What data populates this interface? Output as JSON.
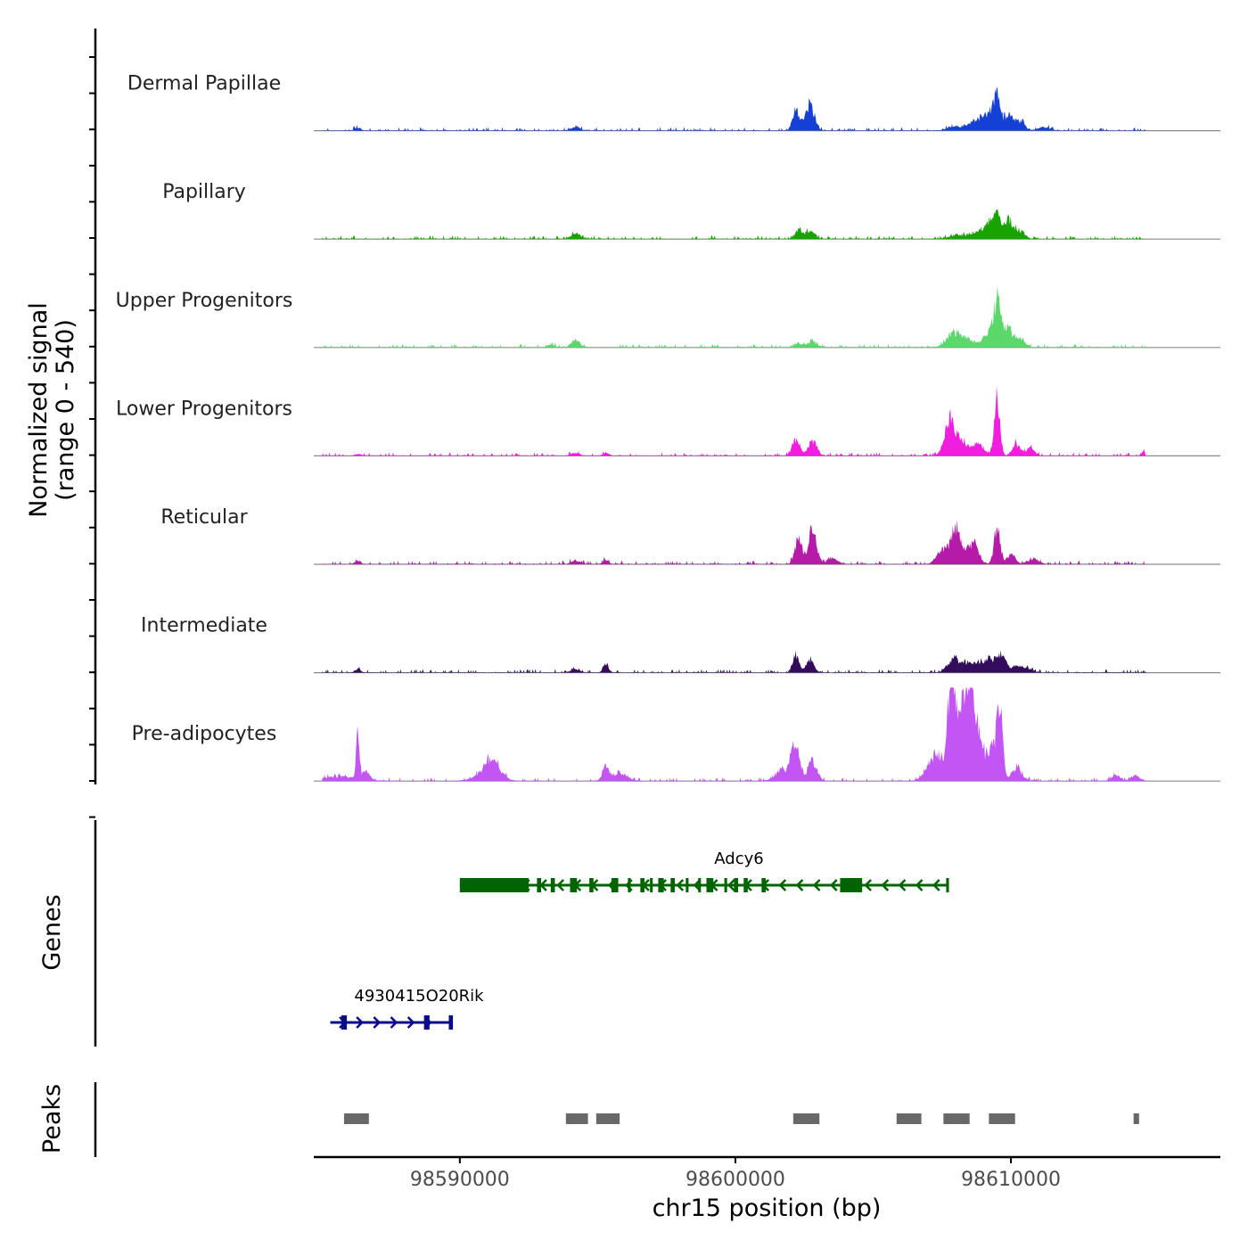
{
  "chart_data": {
    "type": "area",
    "title": "",
    "ylabel_line1": "Normalized signal",
    "ylabel_line2": "(range 0 - 540)",
    "xlabel": "chr15 position (bp)",
    "xlim": [
      98584700,
      98617600
    ],
    "ylim": [
      0,
      540
    ],
    "x_ticks": [
      98590000,
      98600000,
      98610000
    ],
    "x_tick_labels": [
      "98590000",
      "98600000",
      "98610000"
    ],
    "series": [
      {
        "name": "Dermal Papillae",
        "color": "#1440d6",
        "peaks": [
          [
            98586300,
            20,
            100
          ],
          [
            98594200,
            25,
            150
          ],
          [
            98602200,
            160,
            120
          ],
          [
            98602700,
            190,
            160
          ],
          [
            98608000,
            30,
            250
          ],
          [
            98608700,
            70,
            250
          ],
          [
            98609200,
            120,
            200
          ],
          [
            98609500,
            250,
            120
          ],
          [
            98609900,
            100,
            150
          ],
          [
            98610300,
            70,
            180
          ],
          [
            98611200,
            25,
            200
          ]
        ]
      },
      {
        "name": "Papillary",
        "color": "#18a300",
        "peaks": [
          [
            98594200,
            45,
            150
          ],
          [
            98602300,
            70,
            120
          ],
          [
            98602700,
            60,
            150
          ],
          [
            98608000,
            30,
            250
          ],
          [
            98608700,
            45,
            250
          ],
          [
            98609200,
            100,
            200
          ],
          [
            98609500,
            170,
            120
          ],
          [
            98609900,
            140,
            150
          ],
          [
            98610300,
            60,
            180
          ]
        ]
      },
      {
        "name": "Upper Progenitors",
        "color": "#5ad86a",
        "peaks": [
          [
            98593300,
            15,
            150
          ],
          [
            98594200,
            45,
            150
          ],
          [
            98602300,
            30,
            150
          ],
          [
            98602800,
            45,
            150
          ],
          [
            98607900,
            100,
            250
          ],
          [
            98608400,
            60,
            250
          ],
          [
            98609300,
            120,
            250
          ],
          [
            98609500,
            270,
            120
          ],
          [
            98609900,
            130,
            150
          ],
          [
            98610300,
            60,
            180
          ]
        ]
      },
      {
        "name": "Lower Progenitors",
        "color": "#f01fe0",
        "peaks": [
          [
            98586300,
            15,
            100
          ],
          [
            98594200,
            20,
            150
          ],
          [
            98595300,
            20,
            100
          ],
          [
            98602200,
            120,
            140
          ],
          [
            98602800,
            110,
            150
          ],
          [
            98607800,
            270,
            200
          ],
          [
            98608300,
            90,
            200
          ],
          [
            98608800,
            80,
            200
          ],
          [
            98609500,
            410,
            100
          ],
          [
            98610200,
            80,
            150
          ],
          [
            98610700,
            60,
            150
          ],
          [
            98614800,
            30,
            60
          ]
        ]
      },
      {
        "name": "Reticular",
        "color": "#b51aa8",
        "peaks": [
          [
            98586300,
            25,
            100
          ],
          [
            98594200,
            25,
            150
          ],
          [
            98595300,
            30,
            100
          ],
          [
            98602300,
            190,
            130
          ],
          [
            98602800,
            260,
            140
          ],
          [
            98603500,
            40,
            200
          ],
          [
            98607500,
            100,
            200
          ],
          [
            98608000,
            260,
            180
          ],
          [
            98608600,
            150,
            200
          ],
          [
            98609500,
            260,
            110
          ],
          [
            98610000,
            70,
            150
          ],
          [
            98610800,
            40,
            200
          ]
        ]
      },
      {
        "name": "Intermediate",
        "color": "#330d5c",
        "peaks": [
          [
            98586300,
            25,
            100
          ],
          [
            98594200,
            25,
            150
          ],
          [
            98595300,
            70,
            90
          ],
          [
            98602200,
            140,
            110
          ],
          [
            98602700,
            80,
            150
          ],
          [
            98607900,
            100,
            200
          ],
          [
            98608400,
            70,
            200
          ],
          [
            98608900,
            70,
            200
          ],
          [
            98609300,
            90,
            200
          ],
          [
            98609700,
            120,
            150
          ],
          [
            98610200,
            50,
            150
          ],
          [
            98610600,
            30,
            150
          ]
        ]
      },
      {
        "name": "Pre-adipocytes",
        "color": "#c355f5",
        "peaks": [
          [
            98585600,
            30,
            700
          ],
          [
            98586300,
            310,
            60
          ],
          [
            98586600,
            60,
            120
          ],
          [
            98591200,
            110,
            250
          ],
          [
            98591000,
            60,
            400
          ],
          [
            98595300,
            100,
            120
          ],
          [
            98595800,
            60,
            250
          ],
          [
            98602200,
            260,
            140
          ],
          [
            98601800,
            80,
            300
          ],
          [
            98602800,
            140,
            160
          ],
          [
            98607300,
            200,
            300
          ],
          [
            98607800,
            650,
            100
          ],
          [
            98608000,
            540,
            110
          ],
          [
            98608300,
            620,
            100
          ],
          [
            98608500,
            700,
            110
          ],
          [
            98608800,
            380,
            160
          ],
          [
            98609300,
            250,
            200
          ],
          [
            98609600,
            490,
            100
          ],
          [
            98610200,
            90,
            200
          ],
          [
            98613800,
            40,
            150
          ],
          [
            98614500,
            40,
            150
          ]
        ]
      }
    ],
    "genes": [
      {
        "name": "Adcy6",
        "color": "#006400",
        "strand": "-",
        "start": 98590000,
        "end": 98607700,
        "exons": [
          [
            98590000,
            98592500
          ],
          [
            98592800,
            98592950
          ],
          [
            98593300,
            98593450
          ],
          [
            98594000,
            98594250
          ],
          [
            98594700,
            98594850
          ],
          [
            98595500,
            98595750
          ],
          [
            98596100,
            98596200
          ],
          [
            98596550,
            98596700
          ],
          [
            98596900,
            98597000
          ],
          [
            98597200,
            98597400
          ],
          [
            98597650,
            98597800
          ],
          [
            98598200,
            98598300
          ],
          [
            98598650,
            98598750
          ],
          [
            98598950,
            98599200
          ],
          [
            98599600,
            98599700
          ],
          [
            98599950,
            98600100
          ],
          [
            98600300,
            98600450
          ],
          [
            98600950,
            98601100
          ],
          [
            98603800,
            98604600
          ],
          [
            98607650,
            98607750
          ]
        ]
      },
      {
        "name": "4930415O20Rik",
        "color": "#0a0a8c",
        "strand": "+",
        "start": 98585300,
        "end": 98589700,
        "exons": [
          [
            98585700,
            98585900
          ],
          [
            98588700,
            98588900
          ],
          [
            98589600,
            98589750
          ]
        ]
      }
    ],
    "peaks": [
      [
        98585800,
        98586700
      ],
      [
        98593850,
        98594650
      ],
      [
        98594950,
        98595800
      ],
      [
        98602100,
        98603050
      ],
      [
        98605850,
        98606750
      ],
      [
        98607550,
        98608500
      ],
      [
        98609200,
        98610150
      ],
      [
        98614450,
        98614650
      ]
    ],
    "panel_labels": {
      "genes": "Genes",
      "peaks": "Peaks"
    },
    "colors": {
      "peak_box": "#686868",
      "baseline": "#8a8a8a",
      "axis": "#000000"
    }
  }
}
